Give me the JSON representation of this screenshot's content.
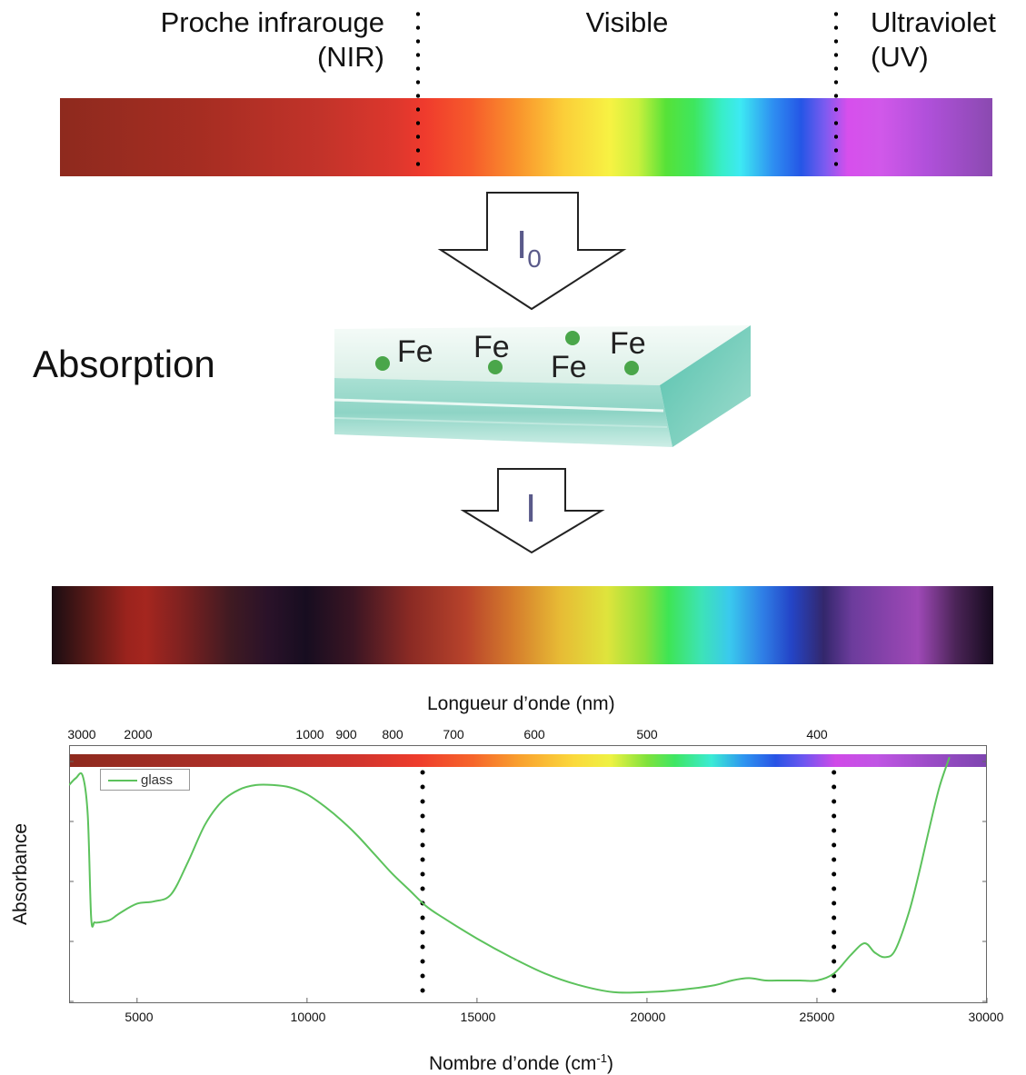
{
  "regions": {
    "nir_line1": "Proche infrarouge",
    "nir_line2": "(NIR)",
    "visible": "Visible",
    "uv_line1": "Ultraviolet",
    "uv_line2": "(UV)"
  },
  "arrow_in_label": "I",
  "arrow_in_subscript": "0",
  "arrow_out_label": "I",
  "absorption_label": "Absorption",
  "fe_labels": [
    "Fe",
    "Fe",
    "Fe",
    "Fe"
  ],
  "chart_data": {
    "type": "line",
    "title": "",
    "top_axis_title": "Longueur d’onde (nm)",
    "top_ticks": [
      "3000",
      "2000",
      "1000",
      "900",
      "800",
      "700",
      "600",
      "500",
      "400"
    ],
    "xlabel": "Nombre d’onde (cm",
    "xlabel_sup": "-1",
    "xlabel_end": ")",
    "ylabel": "Absorbance",
    "x_ticks": [
      "5000",
      "10000",
      "15000",
      "20000",
      "25000",
      "30000"
    ],
    "xlim": [
      3000,
      30000
    ],
    "ylim": [
      0,
      1
    ],
    "legend": "top-left",
    "grid": false,
    "boundary_lines_cm": [
      13400,
      25500
    ],
    "series": [
      {
        "name": "glass",
        "color": "#5cc25c",
        "x": [
          3000,
          3200,
          3400,
          3550,
          3650,
          3750,
          3900,
          4200,
          4500,
          5000,
          5500,
          6000,
          6500,
          7000,
          7500,
          8000,
          8500,
          9000,
          9500,
          10000,
          10500,
          11000,
          11500,
          12000,
          12500,
          13000,
          13500,
          14000,
          15000,
          16000,
          17000,
          18000,
          19000,
          20000,
          21000,
          22000,
          22500,
          23000,
          23500,
          24000,
          24500,
          25000,
          25500,
          26000,
          26400,
          26700,
          27000,
          27300,
          27700,
          28000,
          28300,
          28600,
          28900
        ],
        "y": [
          0.93,
          0.96,
          0.97,
          0.8,
          0.36,
          0.34,
          0.34,
          0.35,
          0.38,
          0.42,
          0.43,
          0.46,
          0.6,
          0.76,
          0.86,
          0.91,
          0.93,
          0.93,
          0.92,
          0.89,
          0.84,
          0.78,
          0.71,
          0.63,
          0.55,
          0.48,
          0.41,
          0.36,
          0.27,
          0.19,
          0.12,
          0.07,
          0.04,
          0.04,
          0.05,
          0.07,
          0.09,
          0.1,
          0.09,
          0.09,
          0.09,
          0.09,
          0.12,
          0.2,
          0.25,
          0.21,
          0.19,
          0.22,
          0.38,
          0.55,
          0.74,
          0.92,
          1.05
        ]
      }
    ]
  }
}
